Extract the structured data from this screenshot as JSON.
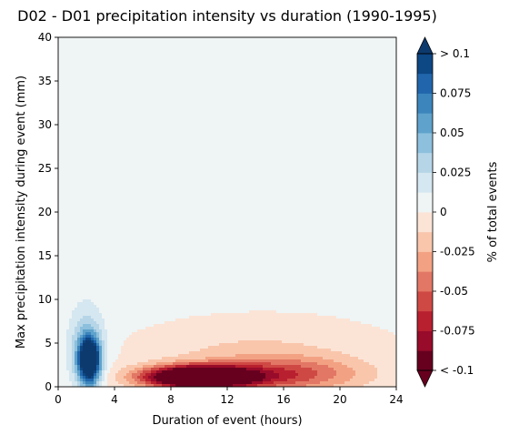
{
  "chart_data": {
    "type": "heatmap",
    "title": "D02 - D01 precipitation intensity vs duration (1990-1995)",
    "xlabel": "Duration of event (hours)",
    "ylabel": "Max precipitation intensity during event (mm)",
    "xlim": [
      0,
      24
    ],
    "ylim": [
      0,
      40
    ],
    "xticks": [
      0,
      4,
      8,
      12,
      16,
      20,
      24
    ],
    "yticks": [
      0,
      5,
      10,
      15,
      20,
      25,
      30,
      35,
      40
    ],
    "colorbar": {
      "label": "% of total events",
      "range": [
        -0.1,
        0.1
      ],
      "ticks": [
        {
          "value": 0.1,
          "label": "> 0.1"
        },
        {
          "value": 0.075,
          "label": "0.075"
        },
        {
          "value": 0.05,
          "label": "0.05"
        },
        {
          "value": 0.025,
          "label": "0.025"
        },
        {
          "value": 0,
          "label": "0"
        },
        {
          "value": -0.025,
          "label": "-0.025"
        },
        {
          "value": -0.05,
          "label": "-0.05"
        },
        {
          "value": -0.075,
          "label": "-0.075"
        },
        {
          "value": -0.1,
          "label": "< -0.1"
        }
      ],
      "levels": [
        -0.1,
        -0.0875,
        -0.075,
        -0.0625,
        -0.05,
        -0.0375,
        -0.025,
        -0.0125,
        0,
        0.0125,
        0.025,
        0.0375,
        0.05,
        0.0625,
        0.075,
        0.0875,
        0.1
      ],
      "colors": [
        "#67001f",
        "#980b2a",
        "#b8202f",
        "#cf4944",
        "#e27766",
        "#f2a283",
        "#f9c6ac",
        "#fbe4d6",
        "#eff4f5",
        "#d5e7f0",
        "#b6d6e8",
        "#8dc0dd",
        "#5fa2cb",
        "#3b85bc",
        "#2166ac",
        "#0d4784"
      ],
      "extend": "both",
      "under_color": "#67001f",
      "over_color": "#0d3a6e"
    },
    "field_features": [
      {
        "name": "positive peak",
        "center": [
          2.2,
          3.0
        ],
        "spread": [
          0.75,
          2.6
        ],
        "amplitude": 0.14
      },
      {
        "name": "positive halo",
        "center": [
          2.0,
          4.5
        ],
        "spread": [
          1.3,
          4.8
        ],
        "amplitude": 0.034
      },
      {
        "name": "negative band",
        "center": [
          10.0,
          1.1
        ],
        "spread": [
          3.8,
          1.25
        ],
        "amplitude": -0.17
      },
      {
        "name": "negative tail",
        "center": [
          16.5,
          1.4
        ],
        "spread": [
          5.0,
          1.9
        ],
        "amplitude": -0.045
      },
      {
        "name": "negative spread",
        "center": [
          14.0,
          3.0
        ],
        "spread": [
          7.5,
          4.0
        ],
        "amplitude": -0.02
      },
      {
        "name": "weak positive background",
        "center": [
          6.0,
          30.0
        ],
        "spread": [
          30.0,
          40.0
        ],
        "amplitude": 0.004
      }
    ]
  }
}
